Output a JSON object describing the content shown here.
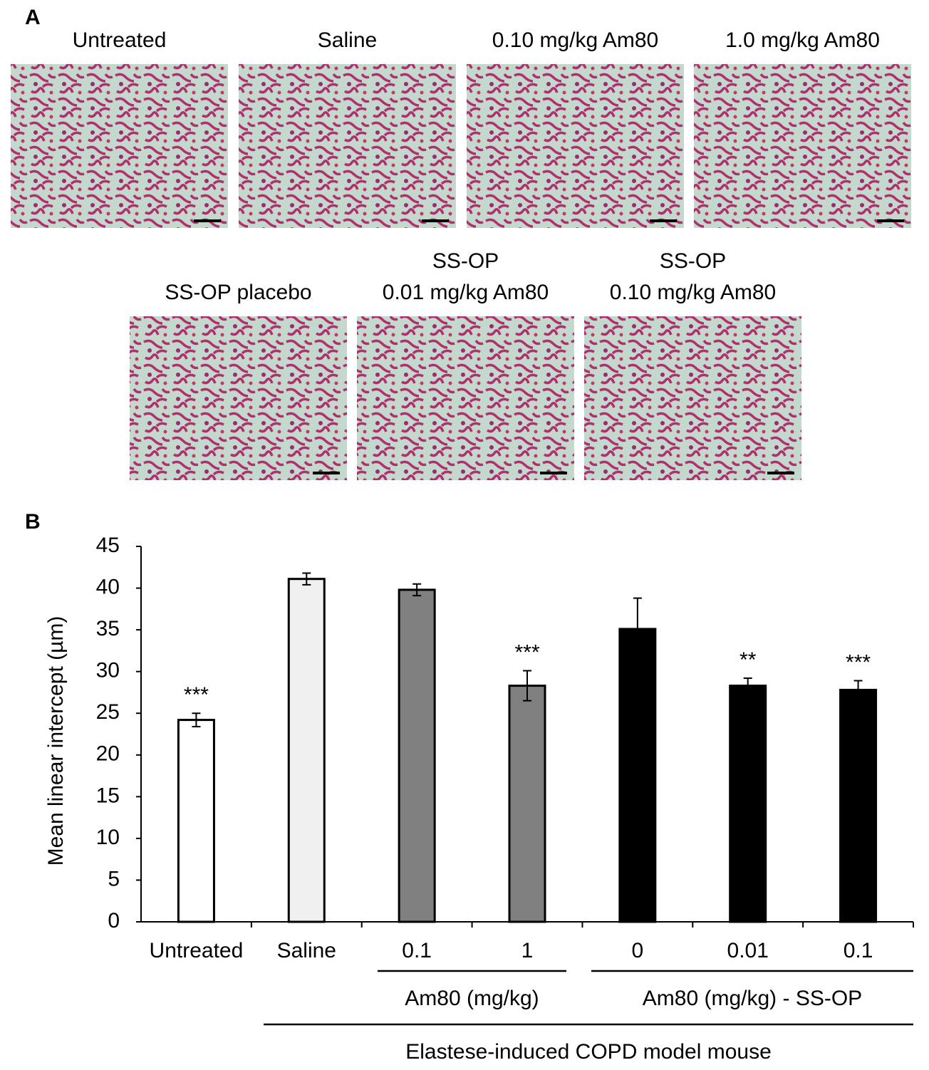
{
  "panel_a": {
    "label": "A",
    "images": [
      {
        "title_lines": [
          "Untreated"
        ]
      },
      {
        "title_lines": [
          "Saline"
        ]
      },
      {
        "title_lines": [
          "0.10 mg/kg Am80"
        ]
      },
      {
        "title_lines": [
          "1.0 mg/kg Am80"
        ]
      },
      {
        "title_lines": [
          "SS-OP placebo"
        ]
      },
      {
        "title_lines": [
          "SS-OP",
          "0.01 mg/kg Am80"
        ]
      },
      {
        "title_lines": [
          "SS-OP",
          "0.10 mg/kg Am80"
        ]
      }
    ]
  },
  "chart_data": {
    "type": "bar",
    "panel_label": "B",
    "y_label": "Mean linear intercept (µm)",
    "categories": [
      "Untreated",
      "Saline",
      "0.1",
      "1",
      "0",
      "0.01",
      "0.1"
    ],
    "values": [
      24.2,
      41.1,
      39.8,
      28.3,
      35.1,
      28.3,
      27.8
    ],
    "errors": [
      0.8,
      0.7,
      0.7,
      1.8,
      3.7,
      0.9,
      1.1
    ],
    "annotations": [
      "***",
      null,
      null,
      "***",
      null,
      "**",
      "***"
    ],
    "colors": [
      "#ffffff",
      "#f0f0f0",
      "#808080",
      "#808080",
      "#000000",
      "#000000",
      "#000000"
    ],
    "groups": [
      {
        "label": "Am80 (mg/kg)"
      },
      {
        "label": "Am80 (mg/kg) - SS-OP"
      },
      {
        "label": "Elastese-induced COPD model mouse"
      }
    ],
    "ylim": [
      0,
      45
    ],
    "yticks": [
      0,
      5,
      10,
      15,
      20,
      25,
      30,
      35,
      40,
      45
    ]
  }
}
